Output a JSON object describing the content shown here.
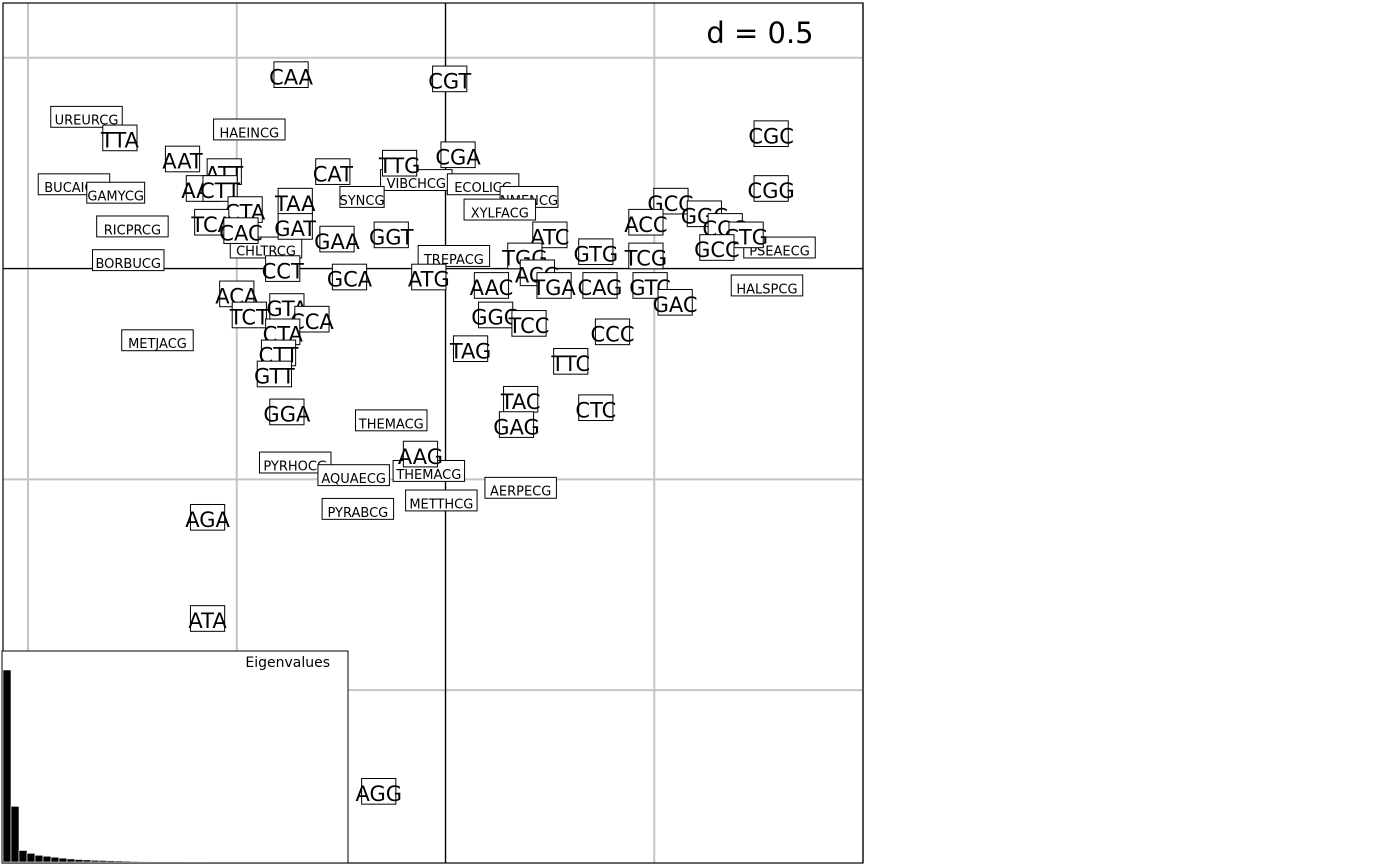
{
  "chart_data": {
    "type": "scatter",
    "title": "",
    "xlabel": "",
    "ylabel": "",
    "scale_label": "d = 0.5",
    "grid_step": 0.5,
    "xlim": [
      -1.06,
      1.0
    ],
    "ylim": [
      -1.41,
      0.63
    ],
    "grid": true,
    "points": [
      {
        "label": "CAA",
        "x": -0.37,
        "y": 0.46
      },
      {
        "label": "CGT",
        "x": 0.01,
        "y": 0.45
      },
      {
        "label": "CGC",
        "x": 0.78,
        "y": 0.32
      },
      {
        "label": "CGG",
        "x": 0.78,
        "y": 0.19
      },
      {
        "label": "TTA",
        "x": -0.78,
        "y": 0.31
      },
      {
        "label": "AAT",
        "x": -0.63,
        "y": 0.26
      },
      {
        "label": "ATT",
        "x": -0.53,
        "y": 0.23
      },
      {
        "label": "CAT",
        "x": -0.27,
        "y": 0.23
      },
      {
        "label": "TTG",
        "x": -0.11,
        "y": 0.25
      },
      {
        "label": "CGA",
        "x": 0.03,
        "y": 0.27
      },
      {
        "label": "AAA",
        "x": -0.58,
        "y": 0.19
      },
      {
        "label": "CTT",
        "x": -0.54,
        "y": 0.19
      },
      {
        "label": "TAA",
        "x": -0.36,
        "y": 0.16
      },
      {
        "label": "CTA",
        "x": -0.48,
        "y": 0.14
      },
      {
        "label": "TCA",
        "x": -0.56,
        "y": 0.11
      },
      {
        "label": "CAC",
        "x": -0.49,
        "y": 0.09
      },
      {
        "label": "GAT",
        "x": -0.36,
        "y": 0.1
      },
      {
        "label": "GAA",
        "x": -0.26,
        "y": 0.07
      },
      {
        "label": "GGT",
        "x": -0.13,
        "y": 0.08
      },
      {
        "label": "GCG",
        "x": 0.54,
        "y": 0.16
      },
      {
        "label": "GGC",
        "x": 0.62,
        "y": 0.13
      },
      {
        "label": "ACC",
        "x": 0.48,
        "y": 0.11
      },
      {
        "label": "CCG",
        "x": 0.67,
        "y": 0.1
      },
      {
        "label": "CTG",
        "x": 0.72,
        "y": 0.08
      },
      {
        "label": "ATC",
        "x": 0.25,
        "y": 0.08
      },
      {
        "label": "GCC",
        "x": 0.65,
        "y": 0.05
      },
      {
        "label": "GTG",
        "x": 0.36,
        "y": 0.04
      },
      {
        "label": "TGG",
        "x": 0.19,
        "y": 0.03
      },
      {
        "label": "TCG",
        "x": 0.48,
        "y": 0.03
      },
      {
        "label": "CCT",
        "x": -0.39,
        "y": 0.0
      },
      {
        "label": "GCA",
        "x": -0.23,
        "y": -0.02
      },
      {
        "label": "ATG",
        "x": -0.04,
        "y": -0.02
      },
      {
        "label": "ACG",
        "x": 0.22,
        "y": -0.01
      },
      {
        "label": "AAC",
        "x": 0.11,
        "y": -0.04
      },
      {
        "label": "TGA",
        "x": 0.26,
        "y": -0.04
      },
      {
        "label": "CAG",
        "x": 0.37,
        "y": -0.04
      },
      {
        "label": "GTC",
        "x": 0.49,
        "y": -0.04
      },
      {
        "label": "GAC",
        "x": 0.55,
        "y": -0.08
      },
      {
        "label": "ACA",
        "x": -0.5,
        "y": -0.06
      },
      {
        "label": "GTA",
        "x": -0.38,
        "y": -0.09
      },
      {
        "label": "TCT",
        "x": -0.47,
        "y": -0.11
      },
      {
        "label": "CCA",
        "x": -0.32,
        "y": -0.12
      },
      {
        "label": "GGG",
        "x": 0.12,
        "y": -0.11
      },
      {
        "label": "TCC",
        "x": 0.2,
        "y": -0.13
      },
      {
        "label": "CCC",
        "x": 0.4,
        "y": -0.15
      },
      {
        "label": "CTA",
        "x": -0.39,
        "y": -0.15
      },
      {
        "label": "CTT",
        "x": -0.4,
        "y": -0.2
      },
      {
        "label": "TAG",
        "x": 0.06,
        "y": -0.19
      },
      {
        "label": "TTC",
        "x": 0.3,
        "y": -0.22
      },
      {
        "label": "GTT",
        "x": -0.41,
        "y": -0.25
      },
      {
        "label": "TAC",
        "x": 0.18,
        "y": -0.31
      },
      {
        "label": "CTC",
        "x": 0.36,
        "y": -0.33
      },
      {
        "label": "GGA",
        "x": -0.38,
        "y": -0.34
      },
      {
        "label": "GAG",
        "x": 0.17,
        "y": -0.37
      },
      {
        "label": "AAG",
        "x": -0.06,
        "y": -0.44
      },
      {
        "label": "AGA",
        "x": -0.57,
        "y": -0.59
      },
      {
        "label": "ATA",
        "x": -0.57,
        "y": -0.83
      },
      {
        "label": "AGG",
        "x": -0.16,
        "y": -1.24
      }
    ],
    "variables": [
      {
        "label": "UREURCG",
        "x": -0.86,
        "y": 0.36
      },
      {
        "label": "HAEINCG",
        "x": -0.47,
        "y": 0.33
      },
      {
        "label": "BUCAICG",
        "x": -0.89,
        "y": 0.2
      },
      {
        "label": "GAMYCG",
        "x": -0.79,
        "y": 0.18
      },
      {
        "label": "VIBCHCG",
        "x": -0.07,
        "y": 0.21
      },
      {
        "label": "ECOLICG",
        "x": 0.09,
        "y": 0.2
      },
      {
        "label": "NMENCG",
        "x": 0.2,
        "y": 0.17
      },
      {
        "label": "SYNCG",
        "x": -0.2,
        "y": 0.17
      },
      {
        "label": "XYLFACG",
        "x": 0.13,
        "y": 0.14
      },
      {
        "label": "RICPRCG",
        "x": -0.75,
        "y": 0.1
      },
      {
        "label": "CHLTRCG",
        "x": -0.43,
        "y": 0.05
      },
      {
        "label": "TREPACG",
        "x": 0.02,
        "y": 0.03
      },
      {
        "label": "PSEAECG",
        "x": 0.8,
        "y": 0.05
      },
      {
        "label": "BORBUCG",
        "x": -0.76,
        "y": 0.02
      },
      {
        "label": "HALSPCG",
        "x": 0.77,
        "y": -0.04
      },
      {
        "label": "METJACG",
        "x": -0.69,
        "y": -0.17
      },
      {
        "label": "THEMACG",
        "x": -0.13,
        "y": -0.36
      },
      {
        "label": "PYRHOCG",
        "x": -0.36,
        "y": -0.46
      },
      {
        "label": "THEMACG",
        "x": -0.04,
        "y": -0.48
      },
      {
        "label": "AQUAECG",
        "x": -0.22,
        "y": -0.49
      },
      {
        "label": "AERPECG",
        "x": 0.18,
        "y": -0.52
      },
      {
        "label": "METTHCG",
        "x": -0.01,
        "y": -0.55
      },
      {
        "label": "PYRABCG",
        "x": -0.21,
        "y": -0.57
      }
    ],
    "inset": {
      "title": "Eigenvalues",
      "values": [
        100,
        29,
        6,
        4.5,
        3.5,
        3,
        2.5,
        2,
        1.6,
        1.3,
        1.1,
        0.9,
        0.8,
        0.7,
        0.6,
        0.5,
        0.4,
        0.35,
        0.3,
        0.25,
        0.2,
        0.15,
        0.1,
        0.08,
        0.05,
        0.03
      ]
    }
  }
}
